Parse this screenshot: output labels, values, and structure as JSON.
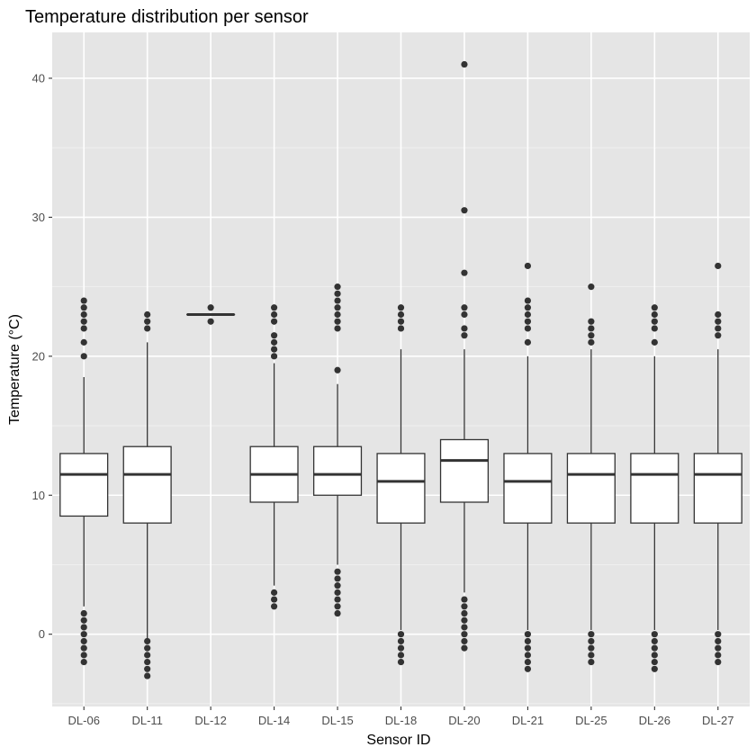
{
  "chart_data": {
    "type": "boxplot",
    "title": "Temperature distribution per sensor",
    "xlabel": "Sensor ID",
    "ylabel": "Temperature (°C)",
    "ylim": [
      -5.2,
      43.3
    ],
    "y_ticks": [
      0,
      10,
      20,
      30,
      40
    ],
    "y_tick_labels": [
      "0",
      "10",
      "20",
      "30",
      "40"
    ],
    "grid": true,
    "colors": {
      "panel_background": "#e5e5e5",
      "grid_major": "#ffffff",
      "grid_minor": "#f2f2f2",
      "box_fill": "#ffffff",
      "box_stroke": "#333333",
      "point": "#333333",
      "tick_text": "#4d4d4d"
    },
    "categories": [
      "DL-06",
      "DL-11",
      "DL-12",
      "DL-14",
      "DL-15",
      "DL-18",
      "DL-20",
      "DL-21",
      "DL-25",
      "DL-26",
      "DL-27"
    ],
    "boxes": [
      {
        "category": "DL-06",
        "lower_whisker": 2.0,
        "q1": 8.5,
        "median": 11.5,
        "q3": 13.0,
        "upper_whisker": 18.5,
        "outliers": [
          24.0,
          23.5,
          23.0,
          22.5,
          22.0,
          21.0,
          20.0,
          1.5,
          1.0,
          0.5,
          0.0,
          -0.5,
          -1.0,
          -1.5,
          -2.0
        ]
      },
      {
        "category": "DL-11",
        "lower_whisker": -0.3,
        "q1": 8.0,
        "median": 11.5,
        "q3": 13.5,
        "upper_whisker": 21.0,
        "outliers": [
          23.0,
          22.5,
          22.0,
          -0.5,
          -1.0,
          -1.5,
          -2.0,
          -2.5,
          -3.0
        ]
      },
      {
        "category": "DL-12",
        "lower_whisker": 23.0,
        "q1": 23.0,
        "median": 23.0,
        "q3": 23.0,
        "upper_whisker": 23.0,
        "outliers": [
          23.5,
          22.5
        ]
      },
      {
        "category": "DL-14",
        "lower_whisker": 3.5,
        "q1": 9.5,
        "median": 11.5,
        "q3": 13.5,
        "upper_whisker": 19.5,
        "outliers": [
          23.5,
          23.0,
          22.5,
          21.5,
          21.0,
          20.5,
          20.0,
          3.0,
          2.5,
          2.0
        ]
      },
      {
        "category": "DL-15",
        "lower_whisker": 5.0,
        "q1": 10.0,
        "median": 11.5,
        "q3": 13.5,
        "upper_whisker": 18.0,
        "outliers": [
          25.0,
          24.5,
          24.0,
          23.5,
          23.0,
          22.5,
          22.0,
          19.0,
          4.5,
          4.0,
          3.5,
          3.0,
          2.5,
          2.0,
          1.5
        ]
      },
      {
        "category": "DL-18",
        "lower_whisker": 0.3,
        "q1": 8.0,
        "median": 11.0,
        "q3": 13.0,
        "upper_whisker": 20.5,
        "outliers": [
          23.5,
          23.0,
          22.5,
          22.0,
          0.0,
          -0.5,
          -1.0,
          -1.5,
          -2.0
        ]
      },
      {
        "category": "DL-20",
        "lower_whisker": 3.0,
        "q1": 9.5,
        "median": 12.5,
        "q3": 14.0,
        "upper_whisker": 20.5,
        "outliers": [
          41.0,
          30.5,
          26.0,
          23.5,
          23.0,
          22.0,
          21.5,
          2.5,
          2.0,
          1.5,
          1.0,
          0.5,
          0.0,
          -0.5,
          -1.0
        ]
      },
      {
        "category": "DL-21",
        "lower_whisker": 0.3,
        "q1": 8.0,
        "median": 11.0,
        "q3": 13.0,
        "upper_whisker": 20.0,
        "outliers": [
          26.5,
          24.0,
          23.5,
          23.0,
          22.5,
          22.0,
          21.0,
          0.0,
          -0.5,
          -1.0,
          -1.5,
          -2.0,
          -2.5
        ]
      },
      {
        "category": "DL-25",
        "lower_whisker": 0.3,
        "q1": 8.0,
        "median": 11.5,
        "q3": 13.0,
        "upper_whisker": 20.5,
        "outliers": [
          25.0,
          22.5,
          22.0,
          21.5,
          21.0,
          0.0,
          -0.5,
          -1.0,
          -1.5,
          -2.0
        ]
      },
      {
        "category": "DL-26",
        "lower_whisker": 0.3,
        "q1": 8.0,
        "median": 11.5,
        "q3": 13.0,
        "upper_whisker": 20.0,
        "outliers": [
          23.5,
          23.0,
          22.5,
          22.0,
          21.0,
          0.0,
          -0.5,
          -1.0,
          -1.5,
          -2.0,
          -2.5
        ]
      },
      {
        "category": "DL-27",
        "lower_whisker": 0.3,
        "q1": 8.0,
        "median": 11.5,
        "q3": 13.0,
        "upper_whisker": 20.5,
        "outliers": [
          26.5,
          23.0,
          22.5,
          22.0,
          21.5,
          0.0,
          -0.5,
          -1.0,
          -1.5,
          -2.0
        ]
      }
    ]
  }
}
